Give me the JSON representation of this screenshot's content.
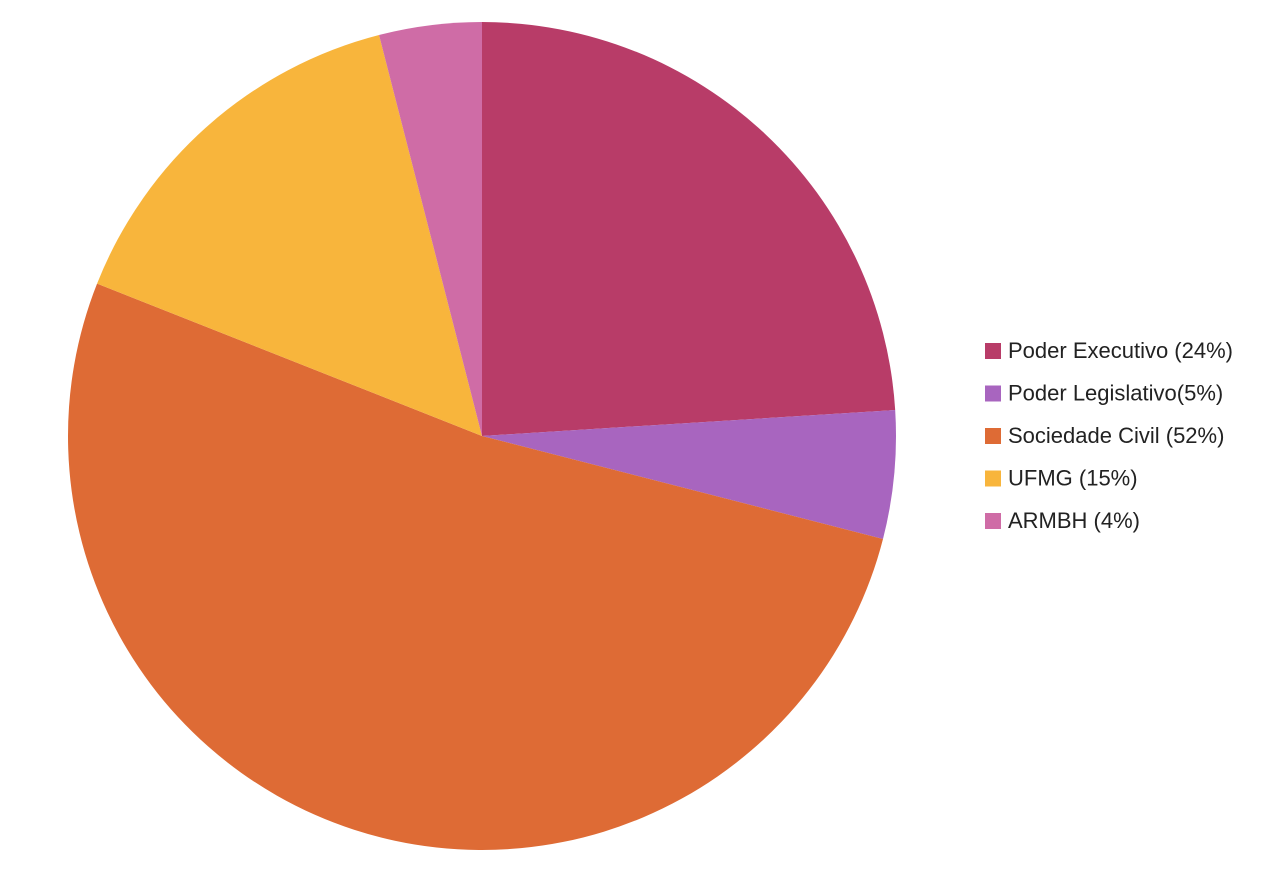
{
  "chart_data": {
    "type": "pie",
    "categories": [
      "Poder Executivo (24%)",
      "Poder Legislativo(5%)",
      "Sociedade Civil (52%)",
      "UFMG (15%)",
      "ARMBH (4%)"
    ],
    "values": [
      24,
      5,
      52,
      15,
      4
    ],
    "colors": [
      "#b83c68",
      "#a865bf",
      "#de6b35",
      "#f8b53c",
      "#cf6ca6"
    ],
    "legend": "right"
  }
}
